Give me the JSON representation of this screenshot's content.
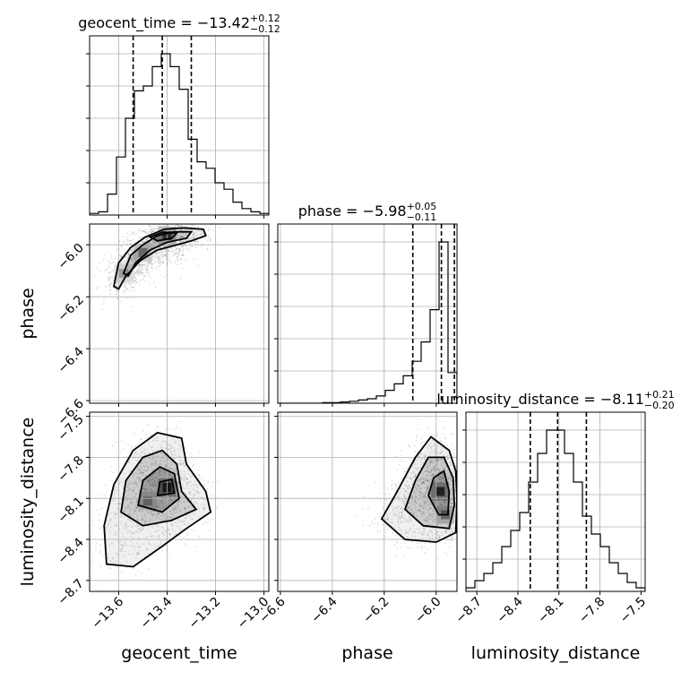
{
  "chart_data": {
    "type": "corner",
    "parameters": [
      "geocent_time",
      "phase",
      "luminosity_distance"
    ],
    "axis_labels": {
      "geocent_time": "geocent_time",
      "phase": "phase",
      "luminosity_distance": "luminosity_distance"
    },
    "ranges": {
      "geocent_time": [
        -13.72,
        -12.98
      ],
      "phase": [
        -6.61,
        -5.92
      ],
      "luminosity_distance": [
        -8.78,
        -7.47
      ]
    },
    "ticks": {
      "geocent_time": [
        -13.6,
        -13.4,
        -13.2,
        -13.0
      ],
      "phase": [
        -6.6,
        -6.4,
        -6.2,
        -6.0
      ],
      "luminosity_distance": [
        -8.7,
        -8.4,
        -8.1,
        -7.8,
        -7.5
      ]
    },
    "tick_labels": {
      "geocent_time": [
        "−13.6",
        "−13.4",
        "−13.2",
        "−13.0"
      ],
      "phase": [
        "−6.6",
        "−6.4",
        "−6.2",
        "−6.0"
      ],
      "luminosity_distance": [
        "−8.7",
        "−8.4",
        "−8.1",
        "−7.8",
        "−7.5"
      ]
    },
    "titles": {
      "geocent_time": {
        "prefix": "geocent_time = −13.42",
        "plus": "+0.12",
        "minus": "−0.12"
      },
      "phase": {
        "prefix": "phase = −5.98",
        "plus": "+0.05",
        "minus": "−0.11"
      },
      "luminosity_distance": {
        "prefix": "luminosity_distance = −8.11",
        "plus": "+0.21",
        "minus": "−0.20"
      }
    },
    "quantiles": {
      "geocent_time": [
        -13.54,
        -13.42,
        -13.3
      ],
      "phase": [
        -6.09,
        -5.98,
        -5.93
      ],
      "luminosity_distance": [
        -8.31,
        -8.11,
        -7.9
      ]
    },
    "histograms": {
      "geocent_time": {
        "edges": [
          -13.72,
          -13.683,
          -13.646,
          -13.609,
          -13.572,
          -13.535,
          -13.498,
          -13.461,
          -13.424,
          -13.387,
          -13.35,
          -13.313,
          -13.276,
          -13.239,
          -13.202,
          -13.165,
          -13.128,
          -13.091,
          -13.054,
          -13.017,
          -12.98
        ],
        "counts": [
          0.01,
          0.02,
          0.13,
          0.36,
          0.6,
          0.77,
          0.8,
          0.92,
          1.0,
          0.92,
          0.78,
          0.47,
          0.33,
          0.29,
          0.2,
          0.16,
          0.08,
          0.04,
          0.02,
          0.01
        ]
      },
      "phase": {
        "edges": [
          -6.61,
          -6.5755,
          -6.541,
          -6.5065,
          -6.472,
          -6.4375,
          -6.403,
          -6.3685,
          -6.334,
          -6.2995,
          -6.265,
          -6.2305,
          -6.196,
          -6.1615,
          -6.127,
          -6.0925,
          -6.058,
          -6.0235,
          -5.989,
          -5.9545,
          -5.92
        ],
        "counts": [
          0,
          0,
          0,
          0,
          0,
          0.004,
          0.004,
          0.008,
          0.012,
          0.02,
          0.028,
          0.045,
          0.08,
          0.12,
          0.17,
          0.26,
          0.38,
          0.58,
          1.0,
          0.19
        ]
      },
      "luminosity_distance": {
        "edges": [
          -8.78,
          -8.7145,
          -8.649,
          -8.5835,
          -8.518,
          -8.4525,
          -8.387,
          -8.3215,
          -8.256,
          -8.1905,
          -8.125,
          -8.0595,
          -7.994,
          -7.9285,
          -7.863,
          -7.7975,
          -7.732,
          -7.6665,
          -7.601,
          -7.5355,
          -7.47
        ],
        "counts": [
          0.02,
          0.06,
          0.1,
          0.16,
          0.25,
          0.34,
          0.44,
          0.61,
          0.77,
          0.9,
          0.9,
          0.77,
          0.61,
          0.42,
          0.32,
          0.25,
          0.16,
          0.1,
          0.05,
          0.02
        ]
      }
    },
    "pairs": [
      {
        "x": "geocent_time",
        "y": "phase",
        "peaks": [
          {
            "x": -13.4,
            "y": -5.965,
            "weight": 0.7
          },
          {
            "x": -13.5,
            "y": -6.03,
            "weight": 0.5
          },
          {
            "x": -13.58,
            "y": -6.11,
            "weight": 0.35
          }
        ],
        "contours": [
          [
            [
              -13.62,
              -6.16
            ],
            [
              -13.6,
              -6.07
            ],
            [
              -13.55,
              -6.01
            ],
            [
              -13.49,
              -5.97
            ],
            [
              -13.41,
              -5.94
            ],
            [
              -13.33,
              -5.935
            ],
            [
              -13.25,
              -5.94
            ],
            [
              -13.24,
              -5.965
            ],
            [
              -13.3,
              -5.985
            ],
            [
              -13.36,
              -6.0
            ],
            [
              -13.44,
              -6.02
            ],
            [
              -13.51,
              -6.06
            ],
            [
              -13.57,
              -6.12
            ],
            [
              -13.6,
              -6.17
            ],
            [
              -13.62,
              -6.16
            ]
          ],
          [
            [
              -13.58,
              -6.11
            ],
            [
              -13.55,
              -6.04
            ],
            [
              -13.5,
              -6.0
            ],
            [
              -13.44,
              -5.965
            ],
            [
              -13.37,
              -5.95
            ],
            [
              -13.3,
              -5.95
            ],
            [
              -13.32,
              -5.975
            ],
            [
              -13.4,
              -5.99
            ],
            [
              -13.47,
              -6.02
            ],
            [
              -13.53,
              -6.07
            ],
            [
              -13.56,
              -6.12
            ],
            [
              -13.58,
              -6.11
            ]
          ],
          [
            [
              -13.47,
              -5.97
            ],
            [
              -13.42,
              -5.952
            ],
            [
              -13.36,
              -5.955
            ],
            [
              -13.38,
              -5.975
            ],
            [
              -13.44,
              -5.985
            ],
            [
              -13.47,
              -5.97
            ]
          ]
        ]
      },
      {
        "x": "geocent_time",
        "y": "luminosity_distance",
        "peaks": [
          {
            "x": -13.4,
            "y": -8.02,
            "weight": 0.8
          },
          {
            "x": -13.48,
            "y": -8.12,
            "weight": 0.4
          }
        ],
        "contours": [
          [
            [
              -13.65,
              -8.58
            ],
            [
              -13.66,
              -8.3
            ],
            [
              -13.62,
              -8.0
            ],
            [
              -13.54,
              -7.75
            ],
            [
              -13.44,
              -7.62
            ],
            [
              -13.34,
              -7.66
            ],
            [
              -13.32,
              -7.85
            ],
            [
              -13.24,
              -8.05
            ],
            [
              -13.22,
              -8.2
            ],
            [
              -13.32,
              -8.32
            ],
            [
              -13.42,
              -8.45
            ],
            [
              -13.54,
              -8.6
            ],
            [
              -13.65,
              -8.58
            ]
          ],
          [
            [
              -13.59,
              -8.2
            ],
            [
              -13.57,
              -7.97
            ],
            [
              -13.5,
              -7.8
            ],
            [
              -13.42,
              -7.75
            ],
            [
              -13.36,
              -7.85
            ],
            [
              -13.34,
              -8.05
            ],
            [
              -13.28,
              -8.18
            ],
            [
              -13.38,
              -8.26
            ],
            [
              -13.5,
              -8.3
            ],
            [
              -13.59,
              -8.2
            ]
          ],
          [
            [
              -13.52,
              -8.15
            ],
            [
              -13.5,
              -7.97
            ],
            [
              -13.43,
              -7.87
            ],
            [
              -13.37,
              -7.92
            ],
            [
              -13.35,
              -8.1
            ],
            [
              -13.42,
              -8.2
            ],
            [
              -13.52,
              -8.15
            ]
          ],
          [
            [
              -13.44,
              -8.08
            ],
            [
              -13.43,
              -7.98
            ],
            [
              -13.38,
              -7.96
            ],
            [
              -13.37,
              -8.06
            ],
            [
              -13.44,
              -8.08
            ]
          ]
        ]
      },
      {
        "x": "phase",
        "y": "luminosity_distance",
        "peaks": [
          {
            "x": -5.985,
            "y": -8.05,
            "weight": 0.8
          },
          {
            "x": -5.965,
            "y": -8.22,
            "weight": 0.5
          }
        ],
        "contours": [
          [
            [
              -6.21,
              -8.25
            ],
            [
              -6.15,
              -8.05
            ],
            [
              -6.08,
              -7.8
            ],
            [
              -6.02,
              -7.65
            ],
            [
              -5.95,
              -7.75
            ],
            [
              -5.925,
              -7.9
            ],
            [
              -5.92,
              -8.1
            ],
            [
              -5.925,
              -8.35
            ],
            [
              -6.0,
              -8.42
            ],
            [
              -6.12,
              -8.4
            ],
            [
              -6.21,
              -8.25
            ]
          ],
          [
            [
              -6.12,
              -8.18
            ],
            [
              -6.08,
              -7.97
            ],
            [
              -6.03,
              -7.8
            ],
            [
              -5.97,
              -7.8
            ],
            [
              -5.935,
              -7.95
            ],
            [
              -5.93,
              -8.15
            ],
            [
              -5.95,
              -8.32
            ],
            [
              -6.05,
              -8.3
            ],
            [
              -6.12,
              -8.18
            ]
          ],
          [
            [
              -6.03,
              -8.08
            ],
            [
              -6.01,
              -7.95
            ],
            [
              -5.97,
              -7.9
            ],
            [
              -5.95,
              -8.05
            ],
            [
              -5.955,
              -8.22
            ],
            [
              -5.99,
              -8.22
            ],
            [
              -6.03,
              -8.08
            ]
          ]
        ]
      }
    ]
  }
}
